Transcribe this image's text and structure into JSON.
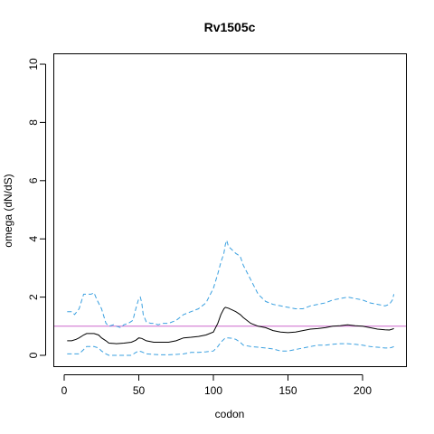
{
  "chart_data": {
    "type": "line",
    "title": "Rv1505c",
    "xlabel": "codon",
    "ylabel": "omega (dN/dS)",
    "xlim": [
      0,
      225
    ],
    "ylim": [
      0,
      10
    ],
    "xticks": [
      0,
      50,
      100,
      150,
      200
    ],
    "yticks": [
      0,
      2,
      4,
      6,
      8,
      10
    ],
    "x_tick_labels": [
      "0",
      "50",
      "100",
      "150",
      "200"
    ],
    "y_tick_labels": [
      "0",
      "2",
      "4",
      "6",
      "8",
      "10"
    ],
    "grid": false,
    "reference_line": {
      "y": 1,
      "color": "#cc66cc"
    },
    "series": [
      {
        "role": "upper",
        "style": "dashed",
        "color": "#3aa0e0",
        "x": [
          2,
          5,
          7,
          10,
          13,
          15,
          18,
          20,
          22,
          25,
          28,
          30,
          33,
          35,
          38,
          40,
          43,
          46,
          48,
          50,
          51,
          52,
          53,
          55,
          58,
          60,
          63,
          66,
          70,
          75,
          80,
          85,
          90,
          95,
          100,
          103,
          105,
          107,
          108,
          109,
          110,
          112,
          115,
          118,
          120,
          122,
          125,
          128,
          130,
          135,
          140,
          145,
          150,
          155,
          160,
          165,
          170,
          175,
          180,
          185,
          190,
          195,
          200,
          205,
          210,
          215,
          218,
          220,
          221
        ],
        "y": [
          1.5,
          1.5,
          1.4,
          1.6,
          2.1,
          2.1,
          2.1,
          2.15,
          1.9,
          1.6,
          1.1,
          1.0,
          1.05,
          1.0,
          0.95,
          1.05,
          1.1,
          1.2,
          1.6,
          1.95,
          2.0,
          1.8,
          1.4,
          1.15,
          1.1,
          1.1,
          1.05,
          1.1,
          1.1,
          1.2,
          1.4,
          1.5,
          1.6,
          1.8,
          2.3,
          2.8,
          3.2,
          3.5,
          3.8,
          3.95,
          3.75,
          3.65,
          3.5,
          3.4,
          3.1,
          2.9,
          2.6,
          2.3,
          2.1,
          1.85,
          1.75,
          1.7,
          1.65,
          1.6,
          1.6,
          1.7,
          1.75,
          1.8,
          1.9,
          1.95,
          2.0,
          1.95,
          1.9,
          1.8,
          1.75,
          1.7,
          1.75,
          1.9,
          2.1
        ]
      },
      {
        "role": "estimate",
        "style": "solid",
        "color": "#000000",
        "x": [
          2,
          5,
          8,
          10,
          13,
          15,
          18,
          20,
          23,
          25,
          28,
          30,
          35,
          40,
          45,
          48,
          50,
          52,
          55,
          60,
          65,
          70,
          75,
          80,
          85,
          90,
          95,
          100,
          103,
          105,
          107,
          108,
          110,
          113,
          115,
          118,
          120,
          125,
          130,
          135,
          140,
          145,
          150,
          155,
          160,
          165,
          170,
          175,
          180,
          185,
          190,
          195,
          200,
          205,
          210,
          215,
          218,
          220,
          221
        ],
        "y": [
          0.5,
          0.5,
          0.55,
          0.6,
          0.7,
          0.75,
          0.75,
          0.75,
          0.7,
          0.6,
          0.5,
          0.42,
          0.4,
          0.42,
          0.45,
          0.52,
          0.6,
          0.58,
          0.5,
          0.45,
          0.45,
          0.45,
          0.5,
          0.6,
          0.62,
          0.65,
          0.7,
          0.8,
          1.1,
          1.4,
          1.6,
          1.65,
          1.62,
          1.55,
          1.5,
          1.4,
          1.3,
          1.1,
          1.0,
          0.95,
          0.85,
          0.8,
          0.78,
          0.8,
          0.85,
          0.9,
          0.92,
          0.95,
          1.0,
          1.02,
          1.05,
          1.02,
          1.0,
          0.95,
          0.9,
          0.88,
          0.87,
          0.9,
          0.92
        ]
      },
      {
        "role": "lower",
        "style": "dashed",
        "color": "#3aa0e0",
        "x": [
          2,
          5,
          10,
          13,
          15,
          18,
          20,
          23,
          25,
          28,
          30,
          35,
          40,
          45,
          48,
          50,
          52,
          55,
          60,
          65,
          70,
          75,
          80,
          85,
          90,
          95,
          100,
          103,
          105,
          107,
          108,
          110,
          113,
          115,
          118,
          120,
          125,
          130,
          135,
          140,
          145,
          150,
          155,
          160,
          165,
          170,
          175,
          180,
          185,
          190,
          195,
          200,
          205,
          210,
          215,
          218,
          220,
          221
        ],
        "y": [
          0.05,
          0.05,
          0.05,
          0.2,
          0.3,
          0.3,
          0.3,
          0.25,
          0.15,
          0.05,
          0.0,
          0.0,
          0.0,
          0.0,
          0.1,
          0.15,
          0.12,
          0.05,
          0.03,
          0.02,
          0.02,
          0.03,
          0.05,
          0.1,
          0.1,
          0.12,
          0.15,
          0.3,
          0.45,
          0.55,
          0.6,
          0.6,
          0.58,
          0.55,
          0.45,
          0.35,
          0.3,
          0.28,
          0.25,
          0.22,
          0.15,
          0.15,
          0.2,
          0.25,
          0.3,
          0.35,
          0.35,
          0.38,
          0.4,
          0.4,
          0.38,
          0.35,
          0.3,
          0.28,
          0.25,
          0.25,
          0.28,
          0.3
        ]
      }
    ]
  }
}
